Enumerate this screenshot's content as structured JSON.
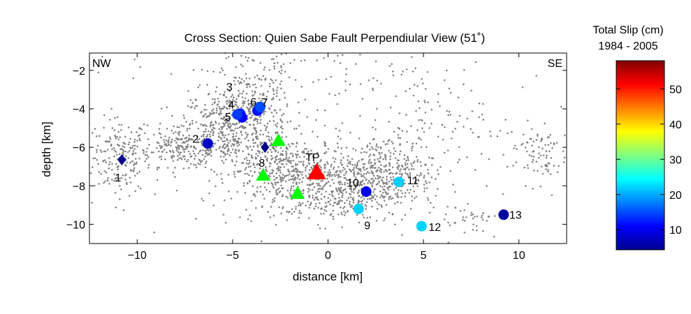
{
  "chart_data": {
    "type": "scatter",
    "title": "Cross Section: Quien Sabe Fault Perpendiular View (51˚)",
    "xlabel": "distance [km]",
    "ylabel": "depth [km]",
    "xlim": [
      -12.5,
      12.5
    ],
    "ylim": [
      -11,
      -1.1
    ],
    "x_ticks": [
      -10,
      -5,
      0,
      5,
      10
    ],
    "y_ticks": [
      -10,
      -8,
      -6,
      -4,
      -2
    ],
    "x_tick_labels": [
      "−10",
      "−5",
      "0",
      "5",
      "10"
    ],
    "y_tick_labels": [
      "−10",
      "−8",
      "−6",
      "−4",
      "−2"
    ],
    "corner_labels": {
      "left": "NW",
      "right": "SE"
    },
    "background_seismicity": {
      "color": "#7f7f7f",
      "clusters": [
        {
          "cx": -10.9,
          "cy": -6.5,
          "sx": 0.7,
          "sy": 1.0,
          "n": 170
        },
        {
          "cx": -7.6,
          "cy": -6.0,
          "sx": 1.3,
          "sy": 0.5,
          "n": 220
        },
        {
          "cx": -5.3,
          "cy": -5.0,
          "sx": 1.2,
          "sy": 1.0,
          "n": 380
        },
        {
          "cx": -3.7,
          "cy": -3.8,
          "sx": 0.9,
          "sy": 1.3,
          "n": 200
        },
        {
          "cx": -2.0,
          "cy": -7.2,
          "sx": 1.6,
          "sy": 0.9,
          "n": 420
        },
        {
          "cx": 0.5,
          "cy": -8.3,
          "sx": 1.8,
          "sy": 0.8,
          "n": 360
        },
        {
          "cx": 3.0,
          "cy": -7.2,
          "sx": 1.3,
          "sy": 0.9,
          "n": 320
        },
        {
          "cx": 4.8,
          "cy": -4.5,
          "sx": 1.5,
          "sy": 1.5,
          "n": 90
        },
        {
          "cx": 7.5,
          "cy": -9.8,
          "sx": 0.7,
          "sy": 0.5,
          "n": 35
        },
        {
          "cx": 11.0,
          "cy": -6.3,
          "sx": 0.8,
          "sy": 0.8,
          "n": 80
        },
        {
          "cx": 0.0,
          "cy": -5.5,
          "sx": 9.0,
          "sy": 3.0,
          "n": 260
        },
        {
          "cx": -3.0,
          "cy": -2.0,
          "sx": 3.0,
          "sy": 0.8,
          "n": 60
        }
      ]
    },
    "repeating_sequences": [
      {
        "label": "1",
        "x": -10.8,
        "y": -6.65,
        "slip": 5,
        "marker": "diamond"
      },
      {
        "label": "2",
        "x": -6.3,
        "y": -5.8,
        "slip": 8,
        "marker": "circle"
      },
      {
        "label": "3",
        "x": -4.6,
        "y": -4.25,
        "slip": 13,
        "marker": "circle"
      },
      {
        "label": "4",
        "x": -4.5,
        "y": -4.45,
        "slip": 11,
        "marker": "circle"
      },
      {
        "label": "5",
        "x": -4.75,
        "y": -4.3,
        "slip": 14,
        "marker": "circle"
      },
      {
        "label": "6",
        "x": -3.7,
        "y": -4.1,
        "slip": 12,
        "marker": "circle"
      },
      {
        "label": "7",
        "x": -3.55,
        "y": -3.9,
        "slip": 15,
        "marker": "circle"
      },
      {
        "label": "8",
        "x": -3.3,
        "y": -6.0,
        "slip": 5,
        "marker": "diamond"
      },
      {
        "label": "9",
        "x": 1.6,
        "y": -9.2,
        "slip": 22,
        "marker": "circle"
      },
      {
        "label": "10",
        "x": 2.0,
        "y": -8.3,
        "slip": 10,
        "marker": "circle"
      },
      {
        "label": "11",
        "x": 3.7,
        "y": -7.8,
        "slip": 22,
        "marker": "circle"
      },
      {
        "label": "12",
        "x": 4.9,
        "y": -10.1,
        "slip": 22,
        "marker": "circle"
      },
      {
        "label": "13",
        "x": 9.2,
        "y": -9.5,
        "slip": 6,
        "marker": "circle"
      }
    ],
    "triangles": [
      {
        "label": "TP",
        "x": -0.6,
        "y": -7.3,
        "color": "#ff0000",
        "size": "large"
      },
      {
        "label": "",
        "x": -3.4,
        "y": -7.45,
        "color": "#00ff00",
        "size": "small"
      },
      {
        "label": "",
        "x": -2.6,
        "y": -5.65,
        "color": "#00ff00",
        "size": "small"
      },
      {
        "label": "",
        "x": -1.6,
        "y": -8.4,
        "color": "#00ff00",
        "size": "small"
      }
    ],
    "colorbar": {
      "title_line1": "Total Slip (cm)",
      "title_line2": "1984 - 2005",
      "range": [
        4.3,
        58
      ],
      "ticks": [
        10,
        20,
        30,
        40,
        50
      ],
      "colormap": "jet"
    }
  }
}
